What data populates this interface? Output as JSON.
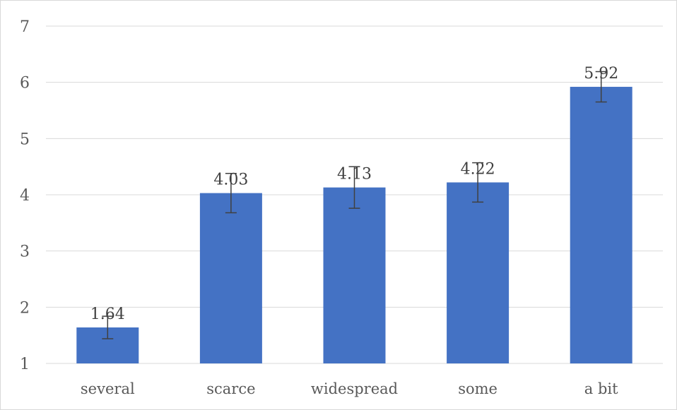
{
  "chart_data": {
    "type": "bar",
    "categories": [
      "several",
      "scarce",
      "widespread",
      "some",
      "a bit"
    ],
    "values": [
      1.64,
      4.03,
      4.13,
      4.22,
      5.92
    ],
    "data_labels": [
      "1.64",
      "4.03",
      "4.13",
      "4.22",
      "5.92"
    ],
    "error": [
      0.2,
      0.35,
      0.37,
      0.35,
      0.27
    ],
    "ylim": [
      1,
      7
    ],
    "yticks": [
      1,
      2,
      3,
      4,
      5,
      6,
      7
    ],
    "ytick_labels": [
      "1",
      "2",
      "3",
      "4",
      "5",
      "6",
      "7"
    ],
    "grid": true,
    "legend": "none",
    "colors": {
      "bar": "#4472c4",
      "grid": "#d9d9d9",
      "error_bar": "#404040"
    }
  }
}
